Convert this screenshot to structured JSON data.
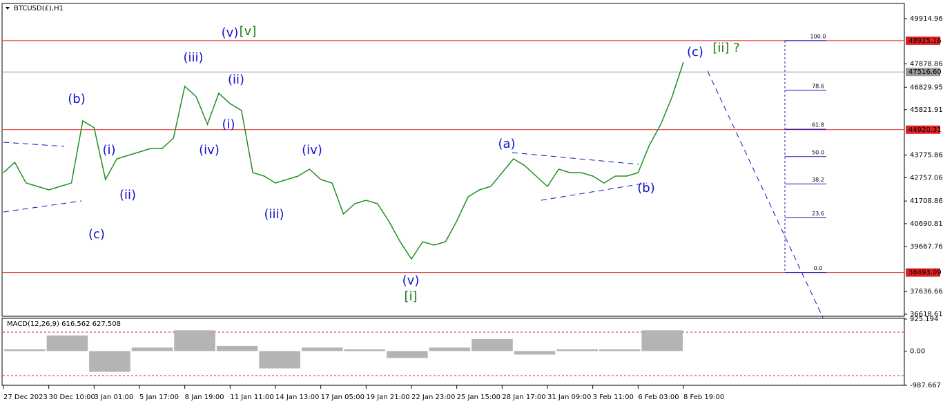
{
  "chart_data": [
    {
      "type": "line",
      "title": "BTCUSD(£),H1",
      "color": "#1f8f1f",
      "categories": [
        "27 Dec 2023",
        null,
        null,
        null,
        "30 Dec 10:00",
        null,
        null,
        null,
        "3 Jan 01:00",
        null,
        null,
        null,
        "5 Jan 17:00",
        null,
        null,
        null,
        "8 Jan 19:00",
        null,
        null,
        null,
        "11 Jan 11:00",
        null,
        null,
        null,
        "14 Jan 13:00",
        null,
        null,
        null,
        "17 Jan 05:00",
        null,
        null,
        null,
        "19 Jan 21:00",
        null,
        null,
        null,
        "22 Jan 23:00",
        null,
        null,
        null,
        "25 Jan 15:00",
        null,
        null,
        null,
        "28 Jan 17:00",
        null,
        null,
        null,
        "31 Jan 09:00",
        null,
        null,
        null,
        "3 Feb 11:00",
        null,
        null,
        null,
        "6 Feb 03:00",
        null,
        null,
        null,
        "8 Feb 19:00"
      ],
      "values": [
        42986,
        43452,
        42520,
        42365,
        42210,
        42365,
        42520,
        45317,
        45006,
        42676,
        43608,
        43763,
        43918,
        44074,
        44074,
        44540,
        46870,
        46404,
        45161,
        46559,
        46093,
        45783,
        42986,
        42831,
        42520,
        42676,
        42831,
        43142,
        42676,
        42520,
        41122,
        41588,
        41744,
        41588,
        40811,
        39879,
        39103,
        39879,
        39724,
        39879,
        40811,
        41899,
        42210,
        42365,
        42986,
        43608,
        43297,
        42831,
        42365,
        43142,
        42986,
        42986,
        42831,
        42520,
        42831,
        42831,
        42986,
        44229,
        45161,
        46404,
        47958
      ],
      "ylim": [
        36525,
        50600
      ],
      "yticks": [
        49914.96,
        47878.86,
        46829.95,
        45821.91,
        43775.86,
        42757.06,
        41708.86,
        40690.81,
        39667.76,
        37636.66,
        36618.61
      ],
      "hlines": [
        {
          "value": 48925.16,
          "color": "#e02020"
        },
        {
          "value": 47516.6,
          "label": "47516.60",
          "color": "#9a9a9a"
        },
        {
          "value": 44920.31,
          "color": "#e02020"
        },
        {
          "value": 38493.09,
          "color": "#e02020"
        }
      ],
      "fib_levels": [
        {
          "value": 100,
          "label": "100.0"
        },
        {
          "value": 78.6,
          "label": "78.6"
        },
        {
          "value": 61.8,
          "label": "61.8"
        },
        {
          "value": 50,
          "label": "50.0"
        },
        {
          "value": 38.2,
          "label": "38.2"
        },
        {
          "value": 23.6,
          "label": "23.6"
        },
        {
          "value": 0,
          "label": "0.0"
        }
      ],
      "annotations": [
        "(v)",
        "[v]",
        "(iii)",
        "(ii)",
        "(b)",
        "(i)",
        "(iv)",
        "(c)",
        "(i)",
        "(ii)",
        "(iii)",
        "(iv)",
        "(a)",
        "(v)",
        "[i]",
        "(b)",
        "(c)",
        "[ii] ?"
      ]
    },
    {
      "type": "bar",
      "title": "MACD(12,26,9) 616.562 627.508",
      "color": "#b4b4b4",
      "values": [
        50,
        450,
        -600,
        100,
        600,
        150,
        -500,
        100,
        50,
        -200,
        100,
        350,
        -100,
        50,
        50,
        600
      ],
      "ylim": [
        -987.667,
        925.194
      ],
      "yticks": [
        925.194,
        {
          "value": 0,
          "label": "0.00"
        },
        -987.667
      ]
    }
  ]
}
